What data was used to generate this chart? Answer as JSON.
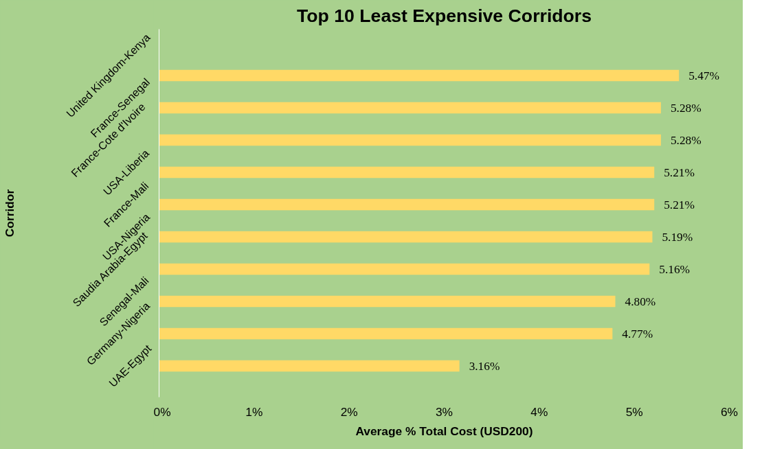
{
  "chart_data": {
    "type": "bar",
    "orientation": "horizontal",
    "title": "Top 10 Least Expensive Corridors",
    "xlabel": "Average % Total Cost (USD200)",
    "ylabel": "Corridor",
    "categories": [
      "United Kingdom-Kenya",
      "France-Senegal",
      "France-Cote d'Ivoire",
      "USA-Liberia",
      "France-Mali",
      "USA-Nigeria",
      "Saudia Arabia-Egypt",
      "Senegal-Mali",
      "Germany-Nigeria",
      "UAE-Egypt"
    ],
    "values": [
      5.47,
      5.28,
      5.28,
      5.21,
      5.21,
      5.19,
      5.16,
      4.8,
      4.77,
      3.16
    ],
    "value_labels": [
      "5.47%",
      "5.28%",
      "5.28%",
      "5.21%",
      "5.21%",
      "5.19%",
      "5.16%",
      "4.80%",
      "4.77%",
      "3.16%"
    ],
    "color": "#ffd966",
    "xlim": [
      0,
      6
    ],
    "xticks": [
      {
        "value": 0,
        "label": "0%"
      },
      {
        "value": 1,
        "label": "1%"
      },
      {
        "value": 2,
        "label": "2%"
      },
      {
        "value": 3,
        "label": "3%"
      },
      {
        "value": 4,
        "label": "4%"
      },
      {
        "value": 5,
        "label": "5%"
      },
      {
        "value": 6,
        "label": "6%"
      }
    ],
    "grid": false
  }
}
